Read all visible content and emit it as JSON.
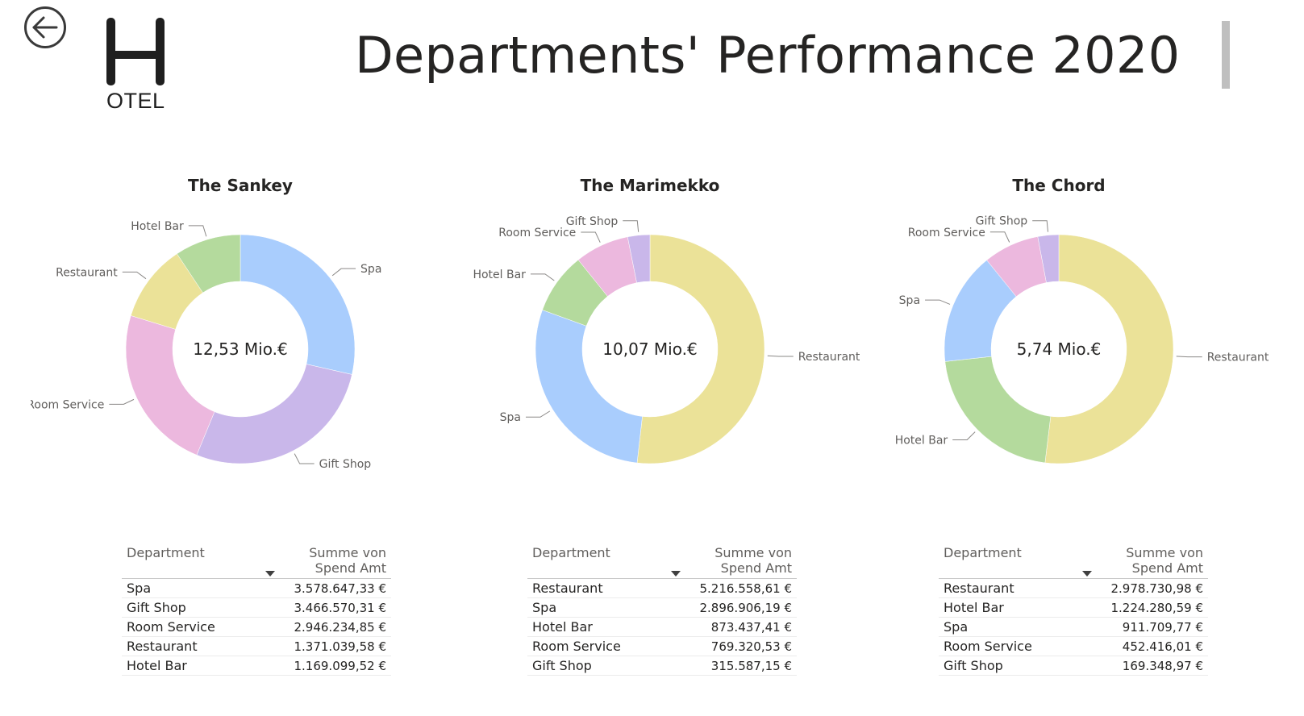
{
  "header": {
    "title": "Departments' Performance 2020",
    "logo_letter": "H",
    "logo_text": "OTEL"
  },
  "colors": {
    "Spa": "#a9cdfd",
    "Gift Shop": "#c9b7ea",
    "Room Service": "#ecb8de",
    "Restaurant": "#ebe298",
    "Hotel Bar": "#b4da9d"
  },
  "chart_data": [
    {
      "type": "pie",
      "title": "The Sankey",
      "center_label": "12,53 Mio.€",
      "categories": [
        "Spa",
        "Gift Shop",
        "Room Service",
        "Restaurant",
        "Hotel Bar"
      ],
      "values": [
        3578647.33,
        3466570.31,
        2946234.85,
        1371039.58,
        1169099.52
      ],
      "table": {
        "headers": [
          "Department",
          "Summe von Spend Amt"
        ],
        "rows": [
          [
            "Spa",
            "3.578.647,33 €"
          ],
          [
            "Gift Shop",
            "3.466.570,31 €"
          ],
          [
            "Room Service",
            "2.946.234,85 €"
          ],
          [
            "Restaurant",
            "1.371.039,58 €"
          ],
          [
            "Hotel Bar",
            "1.169.099,52 €"
          ]
        ]
      }
    },
    {
      "type": "pie",
      "title": "The Marimekko",
      "center_label": "10,07 Mio.€",
      "categories": [
        "Restaurant",
        "Spa",
        "Hotel Bar",
        "Room Service",
        "Gift Shop"
      ],
      "values": [
        5216558.61,
        2896906.19,
        873437.41,
        769320.53,
        315587.15
      ],
      "table": {
        "headers": [
          "Department",
          "Summe von Spend Amt"
        ],
        "rows": [
          [
            "Restaurant",
            "5.216.558,61 €"
          ],
          [
            "Spa",
            "2.896.906,19 €"
          ],
          [
            "Hotel Bar",
            "873.437,41 €"
          ],
          [
            "Room Service",
            "769.320,53 €"
          ],
          [
            "Gift Shop",
            "315.587,15 €"
          ]
        ]
      }
    },
    {
      "type": "pie",
      "title": "The Chord",
      "center_label": "5,74 Mio.€",
      "categories": [
        "Restaurant",
        "Hotel Bar",
        "Spa",
        "Room Service",
        "Gift Shop"
      ],
      "values": [
        2978730.98,
        1224280.59,
        911709.77,
        452416.01,
        169348.97
      ],
      "table": {
        "headers": [
          "Department",
          "Summe von Spend Amt"
        ],
        "rows": [
          [
            "Restaurant",
            "2.978.730,98 €"
          ],
          [
            "Hotel Bar",
            "1.224.280,59 €"
          ],
          [
            "Spa",
            "911.709,77 €"
          ],
          [
            "Room Service",
            "452.416,01 €"
          ],
          [
            "Gift Shop",
            "169.348,97 €"
          ]
        ]
      }
    }
  ]
}
